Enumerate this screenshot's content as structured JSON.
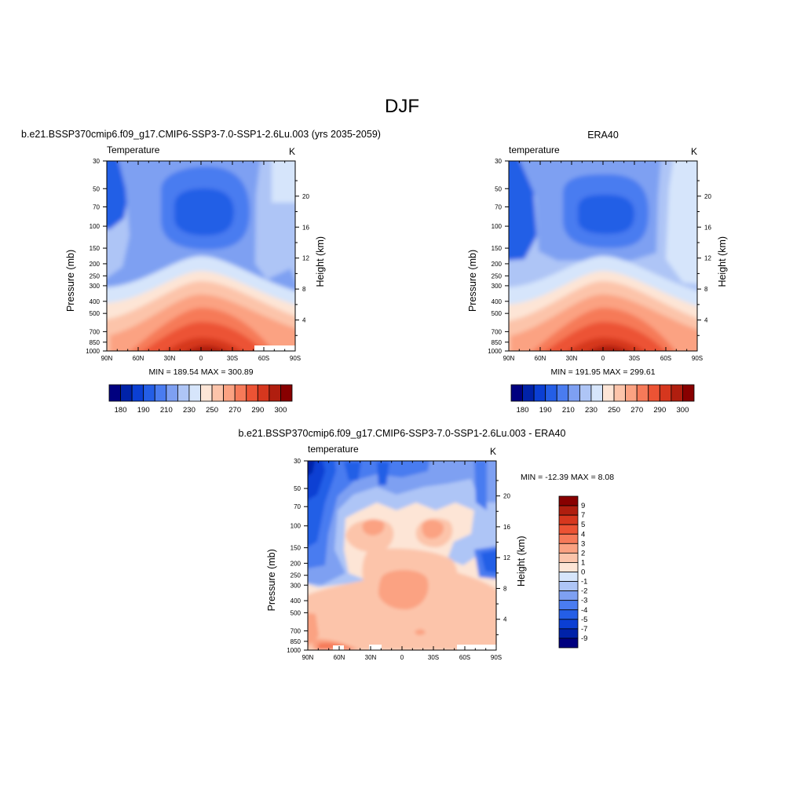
{
  "main_title": "DJF",
  "panels": {
    "model": {
      "header": "b.e21.BSSP370cmip6.f09_g17.CMIP6-SSP3-7.0-SSP1-2.6Lu.003 (yrs 2035-2059)",
      "left_label": "Temperature",
      "right_label": "K",
      "stats": "MIN = 189.54  MAX = 300.89"
    },
    "obs": {
      "header": "ERA40",
      "left_label": "temperature",
      "right_label": "K",
      "stats": "MIN = 191.95  MAX = 299.61"
    },
    "diff": {
      "header": "b.e21.BSSP370cmip6.f09_g17.CMIP6-SSP3-7.0-SSP1-2.6Lu.003 - ERA40",
      "left_label": "temperature",
      "right_label": "K",
      "stats": "MIN = -12.39  MAX =   8.08"
    }
  },
  "axes": {
    "ylabel": "Pressure (mb)",
    "y2label": "Height (km)",
    "x_ticks": [
      "90N",
      "60N",
      "30N",
      "0",
      "30S",
      "60S",
      "90S"
    ],
    "pressure_ticks": [
      "30",
      "50",
      "70",
      "100",
      "150",
      "200",
      "250",
      "300",
      "400",
      "500",
      "700",
      "850",
      "1000"
    ],
    "height_ticks": [
      "4",
      "8",
      "12",
      "16",
      "20"
    ]
  },
  "colorbars": {
    "abs_labels": [
      "180",
      "190",
      "210",
      "230",
      "250",
      "270",
      "290",
      "300"
    ],
    "abs_colors": [
      "#00007f",
      "#0022a8",
      "#0b3fd3",
      "#245ee6",
      "#4a7cf0",
      "#7ea0f2",
      "#aec5f6",
      "#d6e5fb",
      "#fde5d6",
      "#fcc4aa",
      "#fba282",
      "#f67a59",
      "#ec5334",
      "#d6371e",
      "#b01e0f",
      "#880000"
    ],
    "diff_labels": [
      "9",
      "7",
      "5",
      "4",
      "3",
      "2",
      "1",
      "0",
      "-1",
      "-2",
      "-3",
      "-4",
      "-5",
      "-7",
      "-9"
    ],
    "diff_colors": [
      "#880000",
      "#b01e0f",
      "#d6371e",
      "#ec5334",
      "#f67a59",
      "#fba282",
      "#fcc4aa",
      "#fde5d6",
      "#d6e5fb",
      "#aec5f6",
      "#7ea0f2",
      "#4a7cf0",
      "#245ee6",
      "#0b3fd3",
      "#0022a8",
      "#00007f"
    ]
  },
  "chart_data": [
    {
      "type": "heatmap",
      "title": "b.e21.BSSP370cmip6.f09_g17.CMIP6-SSP3-7.0-SSP1-2.6Lu.003 (yrs 2035-2059)",
      "variable": "Temperature",
      "units": "K",
      "x": [
        -90,
        -60,
        -30,
        0,
        30,
        60,
        90
      ],
      "y": [
        30,
        50,
        70,
        100,
        150,
        200,
        250,
        300,
        400,
        500,
        700,
        850,
        1000
      ],
      "min": 189.54,
      "max": 300.89
    },
    {
      "type": "heatmap",
      "title": "ERA40",
      "variable": "temperature",
      "units": "K",
      "x": [
        -90,
        -60,
        -30,
        0,
        30,
        60,
        90
      ],
      "y": [
        30,
        50,
        70,
        100,
        150,
        200,
        250,
        300,
        400,
        500,
        700,
        850,
        1000
      ],
      "min": 191.95,
      "max": 299.61
    },
    {
      "type": "heatmap",
      "title": "b.e21.BSSP370cmip6.f09_g17.CMIP6-SSP3-7.0-SSP1-2.6Lu.003 - ERA40",
      "variable": "temperature",
      "units": "K",
      "x": [
        -90,
        -60,
        -30,
        0,
        30,
        60,
        90
      ],
      "y": [
        30,
        50,
        70,
        100,
        150,
        200,
        250,
        300,
        400,
        500,
        700,
        850,
        1000
      ],
      "min": -12.39,
      "max": 8.08
    }
  ]
}
